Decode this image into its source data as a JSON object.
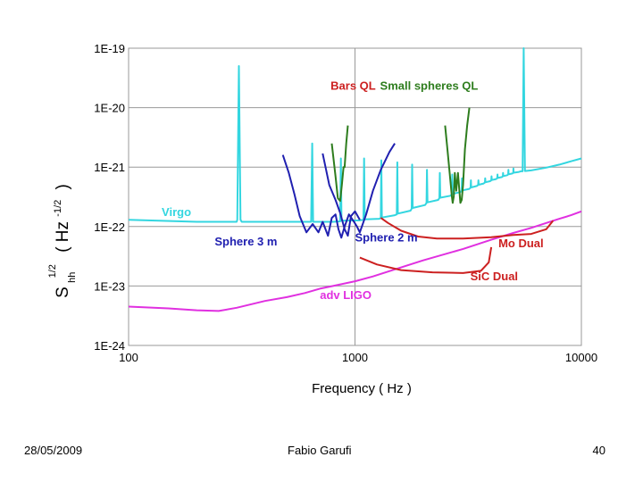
{
  "chart_data": {
    "type": "line",
    "xlabel": "Frequency ( Hz )",
    "ylabel": {
      "s": "S",
      "sup": "1/2",
      "sub": "hh",
      "unit_open": "( Hz",
      "unit_sup": "-1/2",
      "unit_close": ")"
    },
    "x_scale": "log",
    "y_scale": "log",
    "xlim": [
      100,
      10000
    ],
    "ylim": [
      1e-24,
      1e-19
    ],
    "x_ticks": [
      {
        "v": 100,
        "label": "100"
      },
      {
        "v": 1000,
        "label": "1000"
      },
      {
        "v": 10000,
        "label": "10000"
      }
    ],
    "y_ticks": [
      {
        "v": 1e-19,
        "label": "1E-19"
      },
      {
        "v": 1e-20,
        "label": "1E-20"
      },
      {
        "v": 1e-21,
        "label": "1E-21"
      },
      {
        "v": 1e-22,
        "label": "1E-22"
      },
      {
        "v": 1e-23,
        "label": "1E-23"
      },
      {
        "v": 1e-24,
        "label": "1E-24"
      }
    ],
    "grid": true,
    "series": [
      {
        "name": "Virgo",
        "color": "#33d6e0",
        "points": [
          [
            100,
            1.3e-22
          ],
          [
            200,
            1.2e-22
          ],
          [
            300,
            1.2e-22
          ],
          [
            302,
            1.3e-22
          ],
          [
            307,
            5e-20
          ],
          [
            312,
            1.3e-22
          ],
          [
            316,
            1.2e-22
          ],
          [
            500,
            1.2e-22
          ],
          [
            640,
            1.2e-22
          ],
          [
            647,
            2.5e-21
          ],
          [
            653,
            1.2e-22
          ],
          [
            800,
            1.2e-22
          ],
          [
            860,
            1.22e-22
          ],
          [
            866,
            1.4e-21
          ],
          [
            872,
            1.25e-22
          ],
          [
            1050,
            1.27e-22
          ],
          [
            1090,
            1.3e-22
          ],
          [
            1097,
            1.4e-21
          ],
          [
            1104,
            1.32e-22
          ],
          [
            1280,
            1.35e-22
          ],
          [
            1300,
            1.4e-22
          ],
          [
            1307,
            1.3e-21
          ],
          [
            1314,
            1.42e-22
          ],
          [
            1500,
            1.55e-22
          ],
          [
            1530,
            1.6e-22
          ],
          [
            1538,
            1.2e-21
          ],
          [
            1546,
            1.65e-22
          ],
          [
            1760,
            1.85e-22
          ],
          [
            1780,
            2e-22
          ],
          [
            1789,
            1.1e-21
          ],
          [
            1798,
            2.05e-22
          ],
          [
            2040,
            2.3e-22
          ],
          [
            2070,
            2.5e-22
          ],
          [
            2080,
            9e-22
          ],
          [
            2090,
            2.55e-22
          ],
          [
            2330,
            2.8e-22
          ],
          [
            2360,
            3e-22
          ],
          [
            2370,
            8e-22
          ],
          [
            2380,
            3.05e-22
          ],
          [
            2640,
            3.3e-22
          ],
          [
            2680,
            3.5e-22
          ],
          [
            2690,
            7.5e-22
          ],
          [
            2700,
            3.55e-22
          ],
          [
            2920,
            3.8e-22
          ],
          [
            2960,
            4e-22
          ],
          [
            2970,
            6.5e-22
          ],
          [
            2980,
            4.05e-22
          ],
          [
            3200,
            4.3e-22
          ],
          [
            3240,
            4.5e-22
          ],
          [
            3250,
            6e-22
          ],
          [
            3260,
            4.55e-22
          ],
          [
            3450,
            4.8e-22
          ],
          [
            3500,
            5e-22
          ],
          [
            3510,
            6e-22
          ],
          [
            3520,
            5.05e-22
          ],
          [
            3700,
            5.3e-22
          ],
          [
            3750,
            5.5e-22
          ],
          [
            3760,
            6.5e-22
          ],
          [
            3770,
            5.55e-22
          ],
          [
            3950,
            5.8e-22
          ],
          [
            4000,
            6e-22
          ],
          [
            4010,
            7e-22
          ],
          [
            4020,
            6.05e-22
          ],
          [
            4200,
            6.3e-22
          ],
          [
            4250,
            6.5e-22
          ],
          [
            4260,
            7.5e-22
          ],
          [
            4270,
            6.55e-22
          ],
          [
            4450,
            6.8e-22
          ],
          [
            4500,
            7e-22
          ],
          [
            4510,
            8e-22
          ],
          [
            4520,
            7.05e-22
          ],
          [
            4700,
            7.3e-22
          ],
          [
            4750,
            7.5e-22
          ],
          [
            4760,
            9e-22
          ],
          [
            4770,
            7.55e-22
          ],
          [
            4950,
            7.8e-22
          ],
          [
            5000,
            8e-22
          ],
          [
            5010,
            9.5e-22
          ],
          [
            5020,
            8.05e-22
          ],
          [
            5300,
            8.3e-22
          ],
          [
            5400,
            8.5e-22
          ],
          [
            5500,
            8.5e-22
          ],
          [
            5560,
            1e-19
          ],
          [
            5630,
            8.6e-22
          ],
          [
            6000,
            8.8e-22
          ],
          [
            7000,
            9.8e-22
          ],
          [
            8000,
            1.1e-21
          ],
          [
            9000,
            1.25e-21
          ],
          [
            10000,
            1.4e-21
          ]
        ]
      },
      {
        "name": "adv LIGO",
        "color": "#e030e0",
        "points": [
          [
            100,
            4.5e-24
          ],
          [
            150,
            4.2e-24
          ],
          [
            200,
            3.9e-24
          ],
          [
            250,
            3.8e-24
          ],
          [
            300,
            4.3e-24
          ],
          [
            400,
            5.6e-24
          ],
          [
            500,
            6.5e-24
          ],
          [
            600,
            7.6e-24
          ],
          [
            700,
            9e-24
          ],
          [
            800,
            1e-23
          ],
          [
            1000,
            1.2e-23
          ],
          [
            1200,
            1.45e-23
          ],
          [
            1500,
            1.9e-23
          ],
          [
            2000,
            2.7e-23
          ],
          [
            3000,
            4.2e-23
          ],
          [
            4000,
            6e-23
          ],
          [
            5000,
            7.8e-23
          ],
          [
            6000,
            9.5e-23
          ],
          [
            7000,
            1.15e-22
          ],
          [
            8000,
            1.35e-22
          ],
          [
            9000,
            1.55e-22
          ],
          [
            10000,
            1.8e-22
          ]
        ]
      },
      {
        "name": "Bars QL",
        "color": "#2e7d1e",
        "points": [
          [
            790,
            2.5e-21
          ],
          [
            820,
            7e-22
          ],
          [
            840,
            3e-22
          ],
          [
            860,
            2.7e-22
          ],
          [
            875,
            5e-22
          ],
          [
            890,
            1e-21
          ],
          [
            900,
            1e-21
          ],
          [
            915,
            2.5e-21
          ],
          [
            930,
            5e-21
          ]
        ]
      },
      {
        "name": "Small spheres QL",
        "color": "#2e7d1e",
        "points": [
          [
            2500,
            5e-21
          ],
          [
            2560,
            2e-21
          ],
          [
            2620,
            8e-22
          ],
          [
            2680,
            3.2e-22
          ],
          [
            2700,
            2.5e-22
          ],
          [
            2730,
            3.2e-22
          ],
          [
            2760,
            8e-22
          ],
          [
            2800,
            4e-22
          ],
          [
            2850,
            8e-22
          ],
          [
            2920,
            2.5e-22
          ],
          [
            2960,
            2.8e-22
          ],
          [
            3000,
            5e-22
          ],
          [
            3060,
            2e-21
          ],
          [
            3130,
            5e-21
          ],
          [
            3200,
            1e-20
          ]
        ]
      },
      {
        "name": "Sphere 3 m",
        "color": "#2020b0",
        "points": [
          [
            480,
            1.6e-21
          ],
          [
            510,
            8e-22
          ],
          [
            540,
            3.5e-22
          ],
          [
            570,
            1.5e-22
          ],
          [
            610,
            8e-23
          ],
          [
            650,
            1.1e-22
          ],
          [
            690,
            8e-23
          ],
          [
            720,
            1.2e-22
          ],
          [
            760,
            7e-23
          ],
          [
            790,
            1.4e-22
          ],
          [
            820,
            1.6e-22
          ],
          [
            845,
            9e-23
          ],
          [
            870,
            6.5e-23
          ],
          [
            900,
            1e-22
          ],
          [
            940,
            1.6e-22
          ],
          [
            990,
            1.2e-22
          ],
          [
            1020,
            1e-22
          ],
          [
            1050,
            8e-23
          ],
          [
            1120,
            1.6e-22
          ],
          [
            1200,
            4e-22
          ],
          [
            1300,
            9e-22
          ],
          [
            1420,
            1.8e-21
          ],
          [
            1500,
            2.5e-21
          ]
        ]
      },
      {
        "name": "Sphere 2 m",
        "color": "#2020b0",
        "points": [
          [
            720,
            1.7e-21
          ],
          [
            770,
            5e-22
          ],
          [
            820,
            2.8e-22
          ],
          [
            860,
            1.7e-22
          ],
          [
            900,
            9e-23
          ],
          [
            930,
            7e-23
          ],
          [
            960,
            1.5e-22
          ],
          [
            1000,
            1.8e-22
          ],
          [
            1050,
            1.3e-22
          ]
        ]
      },
      {
        "name": "Mo Dual",
        "color": "#cc2020",
        "points": [
          [
            1300,
            1.4e-22
          ],
          [
            1400,
            1.15e-22
          ],
          [
            1600,
            8.5e-23
          ],
          [
            1900,
            6.8e-23
          ],
          [
            2300,
            6.3e-23
          ],
          [
            3000,
            6.3e-23
          ],
          [
            4000,
            6.6e-23
          ],
          [
            5000,
            7.2e-23
          ],
          [
            6000,
            7.5e-23
          ],
          [
            7000,
            9e-23
          ],
          [
            7500,
            1.25e-22
          ]
        ]
      },
      {
        "name": "SiC Dual",
        "color": "#cc2020",
        "points": [
          [
            1050,
            3e-23
          ],
          [
            1250,
            2.3e-23
          ],
          [
            1600,
            1.85e-23
          ],
          [
            2200,
            1.7e-23
          ],
          [
            3000,
            1.65e-23
          ],
          [
            3600,
            1.8e-23
          ],
          [
            3900,
            2.5e-23
          ],
          [
            4000,
            4.5e-23
          ]
        ]
      }
    ],
    "annotations": [
      {
        "text": "Virgo",
        "color": "#33d6e0",
        "x": 140,
        "y": 1.5e-22
      },
      {
        "text": "Bars QL",
        "color": "#cc2020",
        "x": 780,
        "y": 2e-20
      },
      {
        "text": "Small spheres QL",
        "color": "#2e7d1e",
        "x": 1290,
        "y": 2e-20
      },
      {
        "text": "Sphere 3 m",
        "color": "#2020b0",
        "x": 240,
        "y": 4.8e-23
      },
      {
        "text": "Sphere 2 m",
        "color": "#2020b0",
        "x": 1000,
        "y": 5.6e-23
      },
      {
        "text": "Mo Dual",
        "color": "#cc2020",
        "x": 4300,
        "y": 4.5e-23
      },
      {
        "text": "SiC Dual",
        "color": "#cc2020",
        "x": 3230,
        "y": 1.25e-23
      },
      {
        "text": "adv LIGO",
        "color": "#e030e0",
        "x": 700,
        "y": 6e-24
      }
    ]
  },
  "footer": {
    "date": "28/05/2009",
    "author": "Fabio Garufi",
    "page": "40"
  }
}
